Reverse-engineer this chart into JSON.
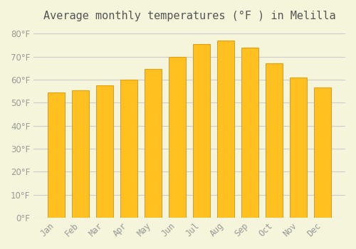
{
  "title": "Average monthly temperatures (°F ) in Melilla",
  "months": [
    "Jan",
    "Feb",
    "Mar",
    "Apr",
    "May",
    "Jun",
    "Jul",
    "Aug",
    "Sep",
    "Oct",
    "Nov",
    "Dec"
  ],
  "values": [
    54.5,
    55.5,
    57.5,
    60.0,
    64.5,
    70.0,
    75.5,
    77.0,
    74.0,
    67.0,
    61.0,
    56.5
  ],
  "bar_color_face": "#FFC020",
  "bar_color_edge": "#E8A000",
  "background_color": "#F5F5DC",
  "grid_color": "#CCCCCC",
  "text_color": "#999999",
  "ylim": [
    0,
    82
  ],
  "yticks": [
    0,
    10,
    20,
    30,
    40,
    50,
    60,
    70,
    80
  ],
  "title_fontsize": 11,
  "axis_fontsize": 9,
  "tick_fontsize": 8.5,
  "bar_width": 0.7
}
